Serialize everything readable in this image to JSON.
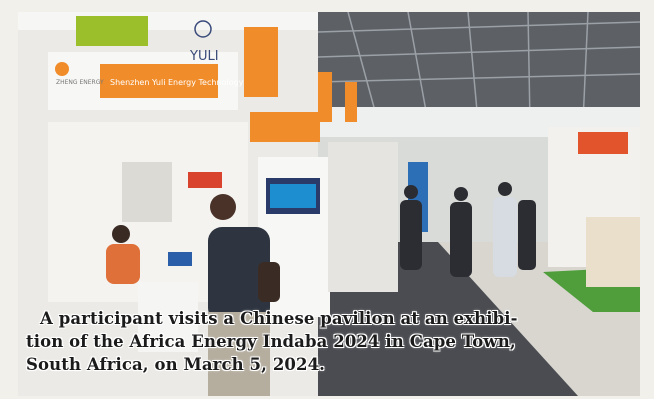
{
  "photo": {
    "booth_brand": "YULI",
    "booth_fascia": "Shenzhen Yuli Energy Technology Co., Ltd.",
    "side_logo_text": "ZHENG ENERGY"
  },
  "caption": {
    "line1": "A participant visits a Chinese pavilion at an exhibi-",
    "line2": "tion of the Africa Energy Indaba 2024 in Cape Town,",
    "line3": "South Africa, on March 5, 2024."
  }
}
